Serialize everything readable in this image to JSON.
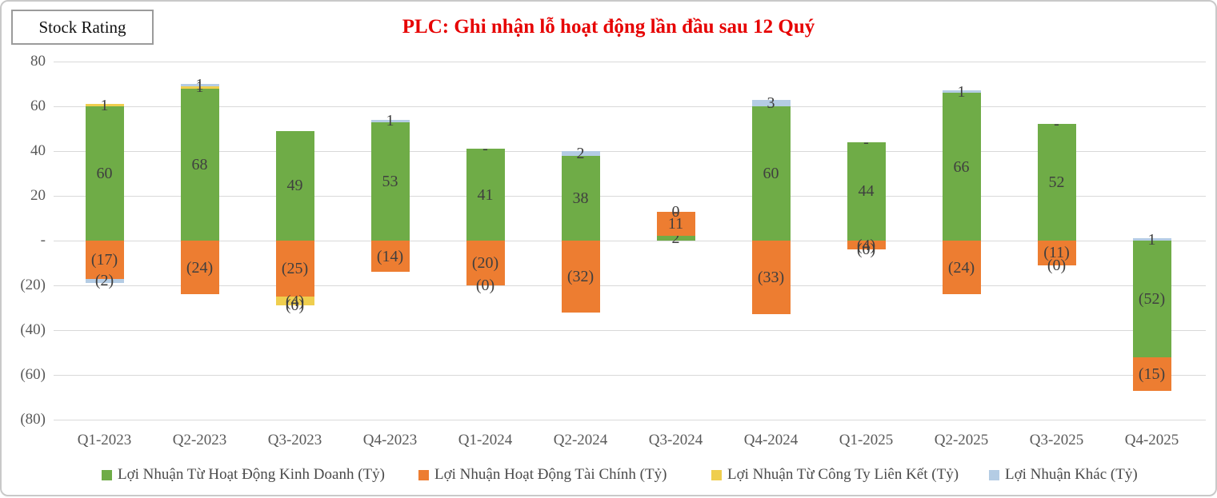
{
  "stock_rating_label": "Stock Rating",
  "title": "PLC: Ghi nhận lỗ hoạt động lần đầu sau 12 Quý",
  "colors": {
    "operating": "#6fac47",
    "financial": "#ed7d31",
    "affiliates": "#efce4e",
    "other": "#b4cce4",
    "grid": "#d9d9d9",
    "axis_text": "#595959",
    "title_red": "#e60000"
  },
  "chart_data": {
    "type": "bar",
    "stacked": true,
    "grid": true,
    "legend_position": "bottom",
    "categories": [
      "Q1-2023",
      "Q2-2023",
      "Q3-2023",
      "Q4-2023",
      "Q1-2024",
      "Q2-2024",
      "Q3-2024",
      "Q4-2024",
      "Q1-2025",
      "Q2-2025",
      "Q3-2025",
      "Q4-2025"
    ],
    "y_axis": {
      "min": -80,
      "max": 80,
      "step": 20,
      "ticks": [
        "80",
        "60",
        "40",
        "20",
        "-",
        "(20)",
        "(40)",
        "(60)",
        "(80)"
      ]
    },
    "series": [
      {
        "name": "Lợi Nhuận Từ Hoạt Động Kinh Doanh (Tỷ)",
        "color_key": "operating",
        "values": [
          60,
          68,
          49,
          53,
          41,
          38,
          2,
          60,
          44,
          66,
          52,
          -52
        ],
        "labels": [
          "60",
          "68",
          "49",
          "53",
          "41",
          "38",
          "2",
          "60",
          "44",
          "66",
          "52",
          "(52)"
        ]
      },
      {
        "name": "Lợi Nhuận Hoạt Động Tài Chính (Tỷ)",
        "color_key": "financial",
        "values": [
          -17,
          -24,
          -25,
          -14,
          -20,
          -32,
          11,
          -33,
          -4,
          -24,
          -11,
          -15
        ],
        "labels": [
          "(17)",
          "(24)",
          "(25)",
          "(14)",
          "(20)",
          "(32)",
          "11",
          "(33)",
          "(4)",
          "(24)",
          "(11)",
          "(15)"
        ]
      },
      {
        "name": "Lợi Nhuận Từ Công Ty Liên Kết (Tỷ)",
        "color_key": "affiliates",
        "values": [
          1,
          1,
          -4,
          0,
          0,
          0,
          0,
          0,
          0,
          0,
          0,
          0
        ],
        "labels": [
          "1",
          "1",
          "(4)",
          "",
          "-",
          "",
          "-",
          "",
          "-",
          "",
          "-",
          ""
        ]
      },
      {
        "name": "Lợi Nhuận Khác (Tỷ)",
        "color_key": "other",
        "values": [
          -2,
          1,
          0,
          1,
          0,
          2,
          0,
          3,
          0,
          1,
          0,
          1
        ],
        "labels": [
          "(2)",
          "1",
          "(0)",
          "1",
          "(0)",
          "2",
          "0",
          "3",
          "(0)",
          "1",
          "(0)",
          "1"
        ]
      }
    ]
  }
}
